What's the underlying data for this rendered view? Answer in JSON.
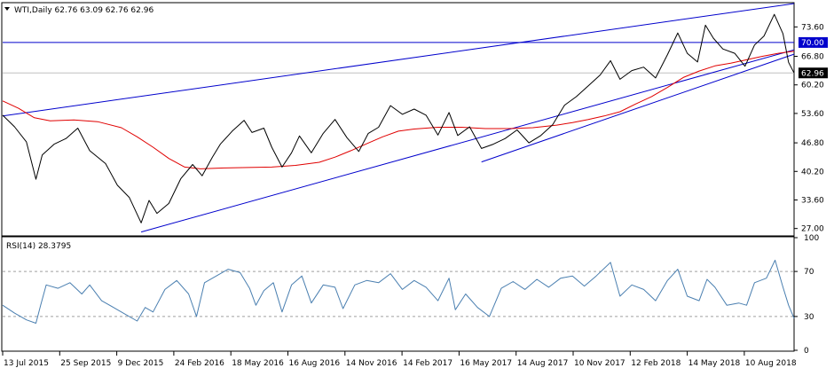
{
  "header": {
    "symbol_line": "WTI,Daily  62.76 63.09 62.76 62.96",
    "menu_icon": "triangle-down-icon"
  },
  "rsi_header": {
    "label": "RSI(14) 28.3795"
  },
  "colors": {
    "price": "#000000",
    "ma": "#e00000",
    "trendline": "#0000cc",
    "level_line": "#0000cc",
    "last_price_line": "#c0c0c0",
    "rsi": "#4a7fb0",
    "rsi_levels": "#a0a0a0",
    "badge_level_bg": "#0000cc",
    "badge_last_bg": "#000000"
  },
  "chart_data": [
    {
      "type": "line",
      "title": "WTI,Daily",
      "ylim": [
        25.5,
        79
      ],
      "y_ticks": [
        "73.60",
        "66.80",
        "60.20",
        "53.60",
        "46.80",
        "40.20",
        "33.60",
        "27.00"
      ],
      "y_tick_values": [
        73.6,
        66.8,
        60.2,
        53.6,
        46.8,
        40.2,
        33.6,
        27.0
      ],
      "badges": [
        {
          "label": "70.00",
          "value": 70.0,
          "kind": "level"
        },
        {
          "label": "62.96",
          "value": 62.96,
          "kind": "last"
        }
      ],
      "horizontal_lines": [
        {
          "name": "level",
          "value": 70.0
        },
        {
          "name": "last",
          "value": 62.96
        }
      ],
      "x_labels": [
        "13 Jul 2015",
        "25 Sep 2015",
        "9 Dec 2015",
        "24 Feb 2016",
        "18 May 2016",
        "16 Aug 2016",
        "14 Nov 2016",
        "14 Feb 2017",
        "16 May 2017",
        "14 Aug 2017",
        "10 Nov 2017",
        "12 Feb 2018",
        "14 May 2018",
        "10 Aug 2018"
      ],
      "x_domain": [
        0,
        100
      ],
      "series": [
        {
          "key": "price",
          "points": [
            [
              0,
              53.2
            ],
            [
              1.5,
              50.5
            ],
            [
              3,
              47
            ],
            [
              4.2,
              38.4
            ],
            [
              5,
              44
            ],
            [
              6.5,
              46.5
            ],
            [
              8,
              47.8
            ],
            [
              9.5,
              50.2
            ],
            [
              11,
              45
            ],
            [
              13,
              42
            ],
            [
              14.5,
              37
            ],
            [
              16,
              34.2
            ],
            [
              17.5,
              28.3
            ],
            [
              18.5,
              33.5
            ],
            [
              19.5,
              30.5
            ],
            [
              21,
              32.8
            ],
            [
              22.5,
              38.5
            ],
            [
              24,
              41.8
            ],
            [
              25.2,
              39.2
            ],
            [
              26.5,
              43.5
            ],
            [
              27.5,
              46.5
            ],
            [
              29,
              49.5
            ],
            [
              30.5,
              52
            ],
            [
              31.5,
              49.2
            ],
            [
              33,
              50.2
            ],
            [
              34,
              45.8
            ],
            [
              35.3,
              41.2
            ],
            [
              36.5,
              44.5
            ],
            [
              37.5,
              48.4
            ],
            [
              39,
              44.5
            ],
            [
              40.5,
              49
            ],
            [
              42,
              52.2
            ],
            [
              43.5,
              48
            ],
            [
              45,
              44.8
            ],
            [
              46.2,
              49
            ],
            [
              47.5,
              50.4
            ],
            [
              49,
              55.4
            ],
            [
              50.5,
              53.4
            ],
            [
              52,
              54.6
            ],
            [
              53.5,
              53.2
            ],
            [
              55,
              48.6
            ],
            [
              56.4,
              53.8
            ],
            [
              57.5,
              48.5
            ],
            [
              59,
              50.5
            ],
            [
              60.5,
              45.5
            ],
            [
              62,
              46.5
            ],
            [
              63.5,
              47.8
            ],
            [
              65,
              49.8
            ],
            [
              66.5,
              46.8
            ],
            [
              68,
              48.5
            ],
            [
              69.5,
              51
            ],
            [
              71,
              55.5
            ],
            [
              72.5,
              57.5
            ],
            [
              74,
              60
            ],
            [
              75.5,
              62.5
            ],
            [
              76.8,
              65.8
            ],
            [
              78,
              61.5
            ],
            [
              79.5,
              63.5
            ],
            [
              81,
              64.3
            ],
            [
              82.5,
              61.8
            ],
            [
              84,
              67.2
            ],
            [
              85.3,
              72.2
            ],
            [
              86.5,
              67.5
            ],
            [
              87.8,
              65.5
            ],
            [
              88.8,
              74
            ],
            [
              89.8,
              71
            ],
            [
              91,
              68.5
            ],
            [
              92.5,
              67.5
            ],
            [
              93.8,
              64.5
            ],
            [
              95,
              69.4
            ],
            [
              96.2,
              71.5
            ],
            [
              97.5,
              76.5
            ],
            [
              98.6,
              72
            ],
            [
              99.3,
              65.4
            ],
            [
              100,
              62.96
            ]
          ]
        },
        {
          "key": "ma",
          "points": [
            [
              0,
              56.5
            ],
            [
              2,
              54.8
            ],
            [
              4,
              52.6
            ],
            [
              6,
              51.9
            ],
            [
              9,
              52.1
            ],
            [
              12,
              51.7
            ],
            [
              15,
              50.3
            ],
            [
              17,
              48.2
            ],
            [
              19,
              45.8
            ],
            [
              21,
              43.2
            ],
            [
              23,
              41.2
            ],
            [
              25,
              40.8
            ],
            [
              28,
              41
            ],
            [
              31,
              41.1
            ],
            [
              34,
              41.2
            ],
            [
              37,
              41.6
            ],
            [
              40,
              42.3
            ],
            [
              42,
              43.5
            ],
            [
              44,
              45
            ],
            [
              46,
              46.6
            ],
            [
              48,
              48.2
            ],
            [
              50,
              49.5
            ],
            [
              52,
              50
            ],
            [
              55,
              50.4
            ],
            [
              58,
              50.4
            ],
            [
              61,
              50.1
            ],
            [
              64,
              50.1
            ],
            [
              67,
              50.3
            ],
            [
              70,
              50.9
            ],
            [
              72,
              51.5
            ],
            [
              74,
              52.2
            ],
            [
              76,
              53
            ],
            [
              78,
              54
            ],
            [
              80,
              55.8
            ],
            [
              82,
              57.5
            ],
            [
              84,
              59.6
            ],
            [
              86,
              61.9
            ],
            [
              88,
              63.4
            ],
            [
              90,
              64.6
            ],
            [
              92,
              65.2
            ],
            [
              94,
              66
            ],
            [
              96,
              66.8
            ],
            [
              98,
              67.5
            ],
            [
              100,
              68
            ]
          ]
        },
        {
          "key": "tl_upper",
          "points": [
            [
              0,
              53
            ],
            [
              100,
              79
            ]
          ]
        },
        {
          "key": "tl_lower",
          "points": [
            [
              17.5,
              26.2
            ],
            [
              100,
              68.3
            ]
          ]
        },
        {
          "key": "tl_mid",
          "points": [
            [
              60.5,
              42.4
            ],
            [
              100,
              67.3
            ]
          ]
        }
      ]
    },
    {
      "type": "line",
      "title": "RSI(14) 28.3795",
      "ylim": [
        0,
        100
      ],
      "y_ticks": [
        "100",
        "70",
        "30",
        "0"
      ],
      "y_tick_values": [
        100,
        70,
        30,
        0
      ],
      "levels": [
        70,
        30
      ],
      "series": [
        {
          "key": "rsi",
          "points": [
            [
              0,
              40
            ],
            [
              1.5,
              33
            ],
            [
              3,
              27
            ],
            [
              4.2,
              24
            ],
            [
              4.8,
              40
            ],
            [
              5.5,
              58
            ],
            [
              7,
              55
            ],
            [
              8.5,
              60
            ],
            [
              10,
              50
            ],
            [
              11,
              58
            ],
            [
              12.5,
              44
            ],
            [
              14,
              38
            ],
            [
              15.5,
              32
            ],
            [
              17,
              26
            ],
            [
              18,
              38
            ],
            [
              19,
              34
            ],
            [
              20.5,
              54
            ],
            [
              22,
              62
            ],
            [
              23.5,
              50
            ],
            [
              24.5,
              30
            ],
            [
              25.5,
              60
            ],
            [
              27,
              66
            ],
            [
              28.5,
              72
            ],
            [
              30,
              69
            ],
            [
              31.2,
              55
            ],
            [
              32,
              40
            ],
            [
              33,
              53
            ],
            [
              34.2,
              60
            ],
            [
              35.3,
              34
            ],
            [
              36.5,
              58
            ],
            [
              37.8,
              66
            ],
            [
              39,
              42
            ],
            [
              40.5,
              58
            ],
            [
              42,
              56
            ],
            [
              43,
              37
            ],
            [
              44.5,
              58
            ],
            [
              46,
              62
            ],
            [
              47.5,
              60
            ],
            [
              49,
              68
            ],
            [
              50.5,
              54
            ],
            [
              52,
              62
            ],
            [
              53.5,
              56
            ],
            [
              55,
              44
            ],
            [
              56.4,
              64
            ],
            [
              57.2,
              36
            ],
            [
              58.5,
              50
            ],
            [
              60,
              38
            ],
            [
              61.5,
              30
            ],
            [
              63,
              55
            ],
            [
              64.5,
              61
            ],
            [
              66,
              54
            ],
            [
              67.5,
              63
            ],
            [
              69,
              56
            ],
            [
              70.5,
              64
            ],
            [
              72,
              66
            ],
            [
              73.5,
              57
            ],
            [
              75,
              66
            ],
            [
              76.8,
              78
            ],
            [
              78,
              48
            ],
            [
              79.5,
              58
            ],
            [
              81,
              54
            ],
            [
              82.5,
              44
            ],
            [
              84,
              62
            ],
            [
              85.3,
              72
            ],
            [
              86.5,
              48
            ],
            [
              88,
              44
            ],
            [
              89,
              63
            ],
            [
              90,
              56
            ],
            [
              91.5,
              40
            ],
            [
              93,
              42
            ],
            [
              94,
              40
            ],
            [
              95,
              60
            ],
            [
              96.5,
              64
            ],
            [
              97.6,
              80
            ],
            [
              98.6,
              56
            ],
            [
              99.3,
              40
            ],
            [
              100,
              28.4
            ]
          ]
        }
      ]
    }
  ]
}
